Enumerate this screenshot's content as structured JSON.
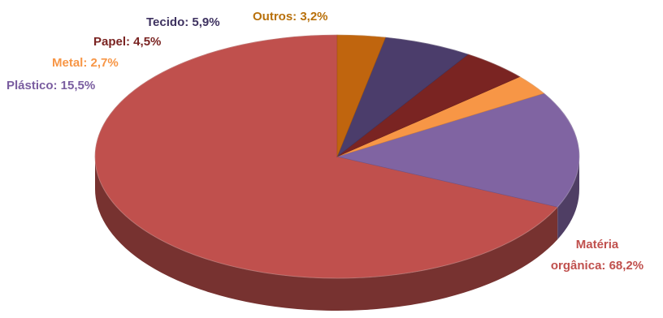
{
  "chart_data": {
    "type": "pie",
    "title": "",
    "style": "3d",
    "slices": [
      {
        "label": "Matéria orgânica: 68,2%",
        "value": 68.2,
        "color": "#c0504d",
        "label_color": "#c0504d"
      },
      {
        "label": "Plástico: 15,5%",
        "value": 15.5,
        "color": "#8064a2",
        "label_color": "#7a5da0"
      },
      {
        "label": "Metal: 2,7%",
        "value": 2.7,
        "color": "#f79646",
        "label_color": "#f79646"
      },
      {
        "label": "Papel: 4,5%",
        "value": 4.5,
        "color": "#7a2422",
        "label_color": "#7a2422"
      },
      {
        "label": "Tecido: 5,9%",
        "value": 5.9,
        "color": "#4b3d6b",
        "label_color": "#3e3260"
      },
      {
        "label": "Outros: 3,2%",
        "value": 3.2,
        "color": "#c0650e",
        "label_color": "#b8700a"
      }
    ]
  }
}
